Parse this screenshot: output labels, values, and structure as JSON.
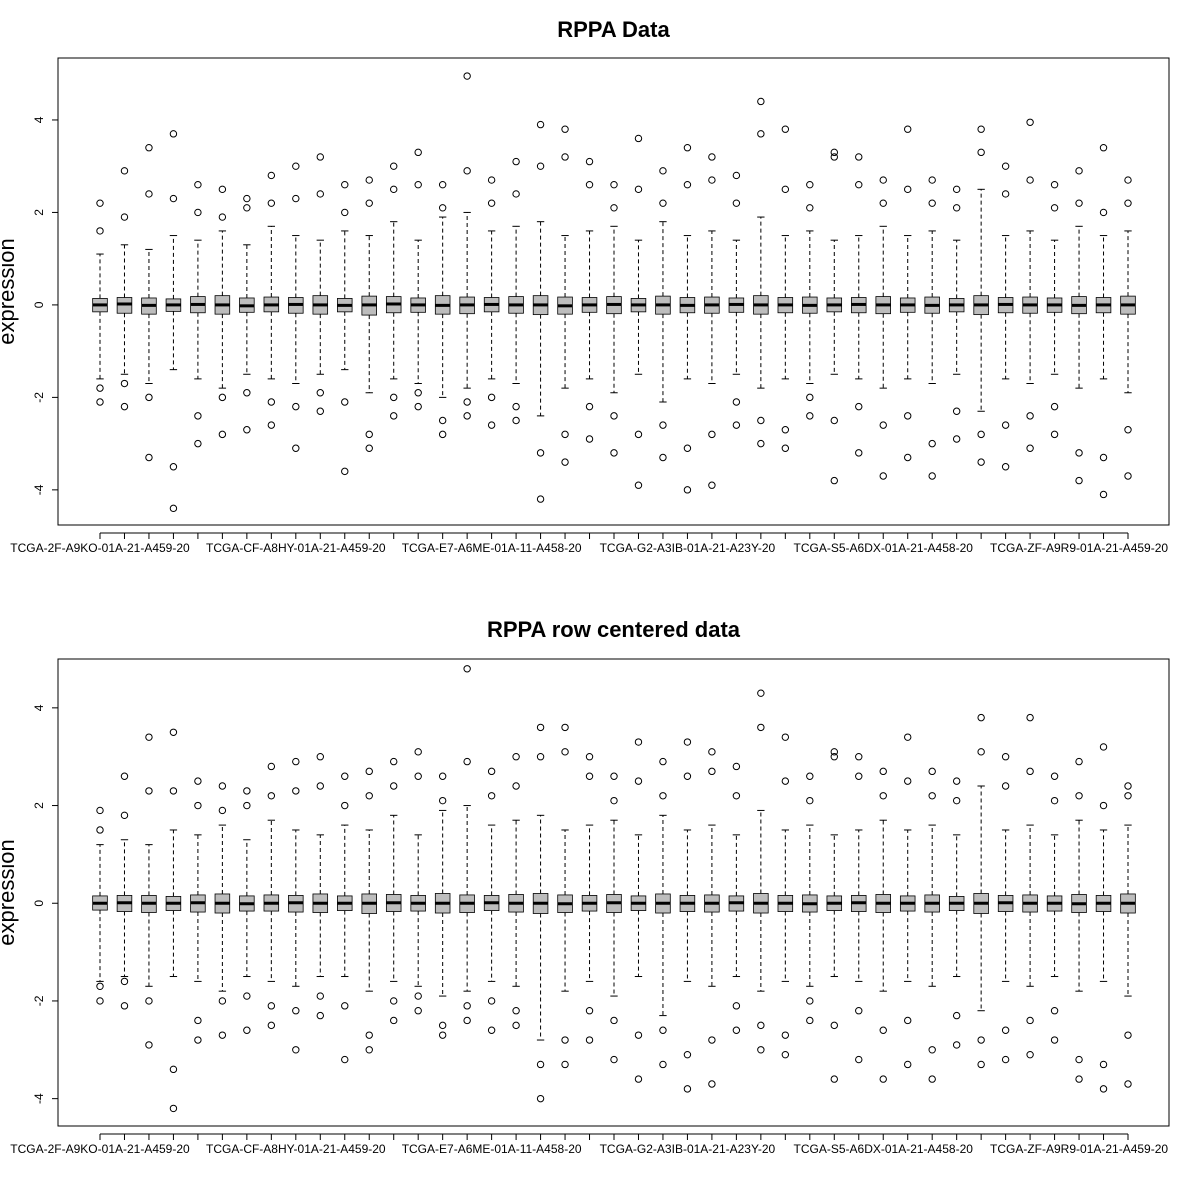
{
  "chart_data": [
    {
      "type": "boxplot",
      "title": "RPPA Data",
      "y_label": "expression",
      "categories": [
        "TCGA-2F-A9KO-01A-21-A459-20",
        null,
        null,
        null,
        null,
        null,
        null,
        null,
        "TCGA-CF-A8HY-01A-21-A459-20",
        null,
        null,
        null,
        null,
        null,
        null,
        null,
        "TCGA-E7-A6ME-01A-11-A458-20",
        null,
        null,
        null,
        null,
        null,
        null,
        null,
        "TCGA-G2-A3IB-01A-21-A23Y-20",
        null,
        null,
        null,
        null,
        null,
        null,
        null,
        "TCGA-S5-A6DX-01A-21-A458-20",
        null,
        null,
        null,
        null,
        null,
        null,
        null,
        "TCGA-ZF-A9R9-01A-21-A459-20",
        null,
        null
      ],
      "boxes": [
        [
          -1.6,
          -0.15,
          0,
          0.14,
          1.1
        ],
        [
          -1.5,
          -0.18,
          0.02,
          0.16,
          1.3
        ],
        [
          -1.7,
          -0.2,
          -0.01,
          0.15,
          1.2
        ],
        [
          -1.4,
          -0.14,
          0,
          0.13,
          1.5
        ],
        [
          -1.6,
          -0.17,
          0.01,
          0.18,
          1.4
        ],
        [
          -1.8,
          -0.2,
          0,
          0.2,
          1.6
        ],
        [
          -1.5,
          -0.16,
          -0.02,
          0.15,
          1.3
        ],
        [
          -1.6,
          -0.15,
          0,
          0.17,
          1.7
        ],
        [
          -1.7,
          -0.18,
          0.01,
          0.16,
          1.5
        ],
        [
          -1.5,
          -0.2,
          0,
          0.2,
          1.4
        ],
        [
          -1.4,
          -0.15,
          -0.01,
          0.14,
          1.6
        ],
        [
          -1.9,
          -0.22,
          0,
          0.19,
          1.5
        ],
        [
          -1.6,
          -0.17,
          0.02,
          0.18,
          1.8
        ],
        [
          -1.7,
          -0.16,
          0,
          0.15,
          1.4
        ],
        [
          -2.0,
          -0.2,
          -0.01,
          0.2,
          1.9
        ],
        [
          -1.8,
          -0.19,
          0,
          0.17,
          2.0
        ],
        [
          -1.6,
          -0.15,
          0.01,
          0.16,
          1.6
        ],
        [
          -1.7,
          -0.18,
          0,
          0.18,
          1.7
        ],
        [
          -2.4,
          -0.21,
          0,
          0.2,
          1.8
        ],
        [
          -1.8,
          -0.2,
          -0.02,
          0.17,
          1.5
        ],
        [
          -1.6,
          -0.16,
          0,
          0.16,
          1.6
        ],
        [
          -1.9,
          -0.19,
          0.01,
          0.18,
          1.7
        ],
        [
          -1.5,
          -0.15,
          0,
          0.14,
          1.4
        ],
        [
          -2.1,
          -0.2,
          0,
          0.19,
          1.8
        ],
        [
          -1.6,
          -0.17,
          -0.01,
          0.16,
          1.5
        ],
        [
          -1.7,
          -0.18,
          0,
          0.17,
          1.6
        ],
        [
          -1.5,
          -0.16,
          0.01,
          0.15,
          1.4
        ],
        [
          -1.8,
          -0.2,
          0,
          0.2,
          1.9
        ],
        [
          -1.6,
          -0.17,
          0,
          0.16,
          1.5
        ],
        [
          -1.7,
          -0.18,
          -0.01,
          0.17,
          1.6
        ],
        [
          -1.5,
          -0.15,
          0,
          0.15,
          1.4
        ],
        [
          -1.6,
          -0.17,
          0.01,
          0.16,
          1.5
        ],
        [
          -1.8,
          -0.19,
          0,
          0.18,
          1.7
        ],
        [
          -1.6,
          -0.16,
          0,
          0.15,
          1.5
        ],
        [
          -1.7,
          -0.18,
          -0.01,
          0.17,
          1.6
        ],
        [
          -1.5,
          -0.15,
          0,
          0.14,
          1.4
        ],
        [
          -2.3,
          -0.21,
          0,
          0.2,
          2.5
        ],
        [
          -1.6,
          -0.17,
          0.01,
          0.16,
          1.5
        ],
        [
          -1.7,
          -0.18,
          0,
          0.17,
          1.6
        ],
        [
          -1.5,
          -0.16,
          0,
          0.15,
          1.4
        ],
        [
          -1.8,
          -0.19,
          -0.01,
          0.18,
          1.7
        ],
        [
          -1.6,
          -0.17,
          0,
          0.16,
          1.5
        ],
        [
          -1.9,
          -0.2,
          0,
          0.19,
          1.6
        ]
      ],
      "outliers": [
        [
          2.2,
          1.6,
          -2.1,
          -1.8
        ],
        [
          2.9,
          1.9,
          -2.2,
          -1.7
        ],
        [
          3.4,
          2.4,
          -3.3,
          -2.0
        ],
        [
          3.7,
          2.3,
          -4.4,
          -3.5
        ],
        [
          2.6,
          2.0,
          -2.4,
          -3.0
        ],
        [
          2.5,
          1.9,
          -2.8,
          -2.0
        ],
        [
          2.3,
          2.1,
          -2.7,
          -1.9
        ],
        [
          2.8,
          2.2,
          -2.6,
          -2.1
        ],
        [
          3.0,
          2.3,
          -3.1,
          -2.2
        ],
        [
          3.2,
          2.4,
          -2.3,
          -1.9
        ],
        [
          2.6,
          2.0,
          -2.1,
          -3.6
        ],
        [
          2.7,
          2.2,
          -2.8,
          -3.1
        ],
        [
          3.0,
          2.5,
          -2.4,
          -2.0
        ],
        [
          3.3,
          2.6,
          -2.2,
          -1.9
        ],
        [
          2.6,
          2.1,
          -2.5,
          -2.8
        ],
        [
          4.95,
          2.9,
          -2.4,
          -2.1
        ],
        [
          2.7,
          2.2,
          -2.6,
          -2.0
        ],
        [
          3.1,
          2.4,
          -2.5,
          -2.2
        ],
        [
          3.9,
          3.0,
          -4.2,
          -3.2
        ],
        [
          3.8,
          3.2,
          -3.4,
          -2.8
        ],
        [
          3.1,
          2.6,
          -2.9,
          -2.2
        ],
        [
          2.6,
          2.1,
          -3.2,
          -2.4
        ],
        [
          3.6,
          2.5,
          -2.8,
          -3.9
        ],
        [
          2.9,
          2.2,
          -3.3,
          -2.6
        ],
        [
          3.4,
          2.6,
          -3.1,
          -4.0
        ],
        [
          3.2,
          2.7,
          -3.9,
          -2.8
        ],
        [
          2.8,
          2.2,
          -2.6,
          -2.1
        ],
        [
          4.4,
          3.7,
          -3.0,
          -2.5
        ],
        [
          3.8,
          2.5,
          -2.7,
          -3.1
        ],
        [
          2.6,
          2.1,
          -2.4,
          -2.0
        ],
        [
          3.3,
          3.2,
          -3.8,
          -2.5
        ],
        [
          3.2,
          2.6,
          -3.2,
          -2.2
        ],
        [
          2.7,
          2.2,
          -3.7,
          -2.6
        ],
        [
          3.8,
          2.5,
          -3.3,
          -2.4
        ],
        [
          2.7,
          2.2,
          -3.0,
          -3.7
        ],
        [
          2.5,
          2.1,
          -2.9,
          -2.3
        ],
        [
          3.8,
          3.3,
          -3.4,
          -2.8
        ],
        [
          3.0,
          2.4,
          -3.5,
          -2.6
        ],
        [
          3.95,
          2.7,
          -3.1,
          -2.4
        ],
        [
          2.6,
          2.1,
          -2.8,
          -2.2
        ],
        [
          2.9,
          2.2,
          -3.2,
          -3.8
        ],
        [
          3.4,
          2.0,
          -4.1,
          -3.3
        ],
        [
          2.7,
          2.2,
          -3.7,
          -2.7
        ]
      ],
      "ylim": [
        -4.76,
        5.34
      ],
      "yticks": [
        -4,
        -2,
        0,
        2,
        4
      ],
      "box_color": "#bdbdbd"
    },
    {
      "type": "boxplot",
      "title": "RPPA row centered data",
      "y_label": "expression",
      "categories": [
        "TCGA-2F-A9KO-01A-21-A459-20",
        null,
        null,
        null,
        null,
        null,
        null,
        null,
        "TCGA-CF-A8HY-01A-21-A459-20",
        null,
        null,
        null,
        null,
        null,
        null,
        null,
        "TCGA-E7-A6ME-01A-11-A458-20",
        null,
        null,
        null,
        null,
        null,
        null,
        null,
        "TCGA-G2-A3IB-01A-21-A23Y-20",
        null,
        null,
        null,
        null,
        null,
        null,
        null,
        "TCGA-S5-A6DX-01A-21-A458-20",
        null,
        null,
        null,
        null,
        null,
        null,
        null,
        "TCGA-ZF-A9R9-01A-21-A459-20",
        null,
        null
      ],
      "boxes": [
        [
          -1.6,
          -0.14,
          0,
          0.15,
          1.2
        ],
        [
          -1.5,
          -0.17,
          0.01,
          0.16,
          1.3
        ],
        [
          -1.7,
          -0.19,
          0,
          0.16,
          1.2
        ],
        [
          -1.5,
          -0.15,
          0,
          0.14,
          1.5
        ],
        [
          -1.6,
          -0.18,
          0.01,
          0.17,
          1.4
        ],
        [
          -1.8,
          -0.2,
          0,
          0.19,
          1.6
        ],
        [
          -1.5,
          -0.16,
          -0.01,
          0.15,
          1.3
        ],
        [
          -1.6,
          -0.16,
          0,
          0.17,
          1.7
        ],
        [
          -1.7,
          -0.18,
          0.01,
          0.16,
          1.5
        ],
        [
          -1.5,
          -0.19,
          0,
          0.19,
          1.4
        ],
        [
          -1.5,
          -0.15,
          0,
          0.15,
          1.6
        ],
        [
          -1.8,
          -0.21,
          0,
          0.19,
          1.5
        ],
        [
          -1.6,
          -0.17,
          0.01,
          0.18,
          1.8
        ],
        [
          -1.7,
          -0.16,
          0,
          0.16,
          1.4
        ],
        [
          -1.9,
          -0.2,
          0,
          0.2,
          1.9
        ],
        [
          -1.8,
          -0.19,
          0,
          0.17,
          2.0
        ],
        [
          -1.6,
          -0.15,
          0.01,
          0.16,
          1.6
        ],
        [
          -1.7,
          -0.18,
          0,
          0.18,
          1.7
        ],
        [
          -2.8,
          -0.21,
          0,
          0.2,
          1.8
        ],
        [
          -1.8,
          -0.19,
          -0.01,
          0.17,
          1.5
        ],
        [
          -1.6,
          -0.16,
          0,
          0.16,
          1.6
        ],
        [
          -1.9,
          -0.19,
          0.01,
          0.18,
          1.7
        ],
        [
          -1.5,
          -0.15,
          0,
          0.15,
          1.4
        ],
        [
          -2.3,
          -0.2,
          0,
          0.19,
          1.8
        ],
        [
          -1.6,
          -0.17,
          0,
          0.16,
          1.5
        ],
        [
          -1.7,
          -0.18,
          0,
          0.17,
          1.6
        ],
        [
          -1.5,
          -0.16,
          0.01,
          0.15,
          1.4
        ],
        [
          -1.8,
          -0.2,
          0,
          0.2,
          1.9
        ],
        [
          -1.6,
          -0.17,
          0,
          0.16,
          1.5
        ],
        [
          -1.7,
          -0.18,
          -0.01,
          0.17,
          1.6
        ],
        [
          -1.5,
          -0.15,
          0,
          0.15,
          1.4
        ],
        [
          -1.6,
          -0.17,
          0.01,
          0.16,
          1.5
        ],
        [
          -1.8,
          -0.19,
          0,
          0.18,
          1.7
        ],
        [
          -1.6,
          -0.16,
          0,
          0.15,
          1.5
        ],
        [
          -1.7,
          -0.18,
          0,
          0.17,
          1.6
        ],
        [
          -1.5,
          -0.15,
          0,
          0.14,
          1.4
        ],
        [
          -2.2,
          -0.21,
          0,
          0.2,
          2.4
        ],
        [
          -1.6,
          -0.17,
          0.01,
          0.16,
          1.5
        ],
        [
          -1.7,
          -0.18,
          0,
          0.17,
          1.6
        ],
        [
          -1.5,
          -0.16,
          0,
          0.15,
          1.4
        ],
        [
          -1.8,
          -0.19,
          -0.01,
          0.18,
          1.7
        ],
        [
          -1.6,
          -0.17,
          0,
          0.16,
          1.5
        ],
        [
          -1.9,
          -0.2,
          0,
          0.19,
          1.6
        ]
      ],
      "outliers": [
        [
          1.9,
          1.5,
          -2.0,
          -1.7
        ],
        [
          2.6,
          1.8,
          -2.1,
          -1.6
        ],
        [
          3.4,
          2.3,
          -2.9,
          -2.0
        ],
        [
          3.5,
          2.3,
          -4.2,
          -3.4
        ],
        [
          2.5,
          2.0,
          -2.4,
          -2.8
        ],
        [
          2.4,
          1.9,
          -2.7,
          -2.0
        ],
        [
          2.3,
          2.0,
          -2.6,
          -1.9
        ],
        [
          2.8,
          2.2,
          -2.5,
          -2.1
        ],
        [
          2.9,
          2.3,
          -3.0,
          -2.2
        ],
        [
          3.0,
          2.4,
          -2.3,
          -1.9
        ],
        [
          2.6,
          2.0,
          -2.1,
          -3.2
        ],
        [
          2.7,
          2.2,
          -2.7,
          -3.0
        ],
        [
          2.9,
          2.4,
          -2.4,
          -2.0
        ],
        [
          3.1,
          2.6,
          -2.2,
          -1.9
        ],
        [
          2.6,
          2.1,
          -2.5,
          -2.7
        ],
        [
          4.8,
          2.9,
          -2.4,
          -2.1
        ],
        [
          2.7,
          2.2,
          -2.6,
          -2.0
        ],
        [
          3.0,
          2.4,
          -2.5,
          -2.2
        ],
        [
          3.6,
          3.0,
          -4.0,
          -3.3
        ],
        [
          3.6,
          3.1,
          -3.3,
          -2.8
        ],
        [
          3.0,
          2.6,
          -2.8,
          -2.2
        ],
        [
          2.6,
          2.1,
          -3.2,
          -2.4
        ],
        [
          3.3,
          2.5,
          -2.7,
          -3.6
        ],
        [
          2.9,
          2.2,
          -3.3,
          -2.6
        ],
        [
          3.3,
          2.6,
          -3.1,
          -3.8
        ],
        [
          3.1,
          2.7,
          -3.7,
          -2.8
        ],
        [
          2.8,
          2.2,
          -2.6,
          -2.1
        ],
        [
          4.3,
          3.6,
          -3.0,
          -2.5
        ],
        [
          3.4,
          2.5,
          -2.7,
          -3.1
        ],
        [
          2.6,
          2.1,
          -2.4,
          -2.0
        ],
        [
          3.1,
          3.0,
          -3.6,
          -2.5
        ],
        [
          3.0,
          2.6,
          -3.2,
          -2.2
        ],
        [
          2.7,
          2.2,
          -3.6,
          -2.6
        ],
        [
          3.4,
          2.5,
          -3.3,
          -2.4
        ],
        [
          2.7,
          2.2,
          -3.0,
          -3.6
        ],
        [
          2.5,
          2.1,
          -2.9,
          -2.3
        ],
        [
          3.8,
          3.1,
          -3.3,
          -2.8
        ],
        [
          3.0,
          2.4,
          -3.2,
          -2.6
        ],
        [
          3.8,
          2.7,
          -3.1,
          -2.4
        ],
        [
          2.6,
          2.1,
          -2.8,
          -2.2
        ],
        [
          2.9,
          2.2,
          -3.2,
          -3.6
        ],
        [
          3.2,
          2.0,
          -3.8,
          -3.3
        ],
        [
          2.4,
          2.2,
          -3.7,
          -2.7
        ]
      ],
      "ylim": [
        -4.56,
        5.0
      ],
      "yticks": [
        -4,
        -2,
        0,
        2,
        4
      ],
      "box_color": "#bdbdbd"
    }
  ]
}
